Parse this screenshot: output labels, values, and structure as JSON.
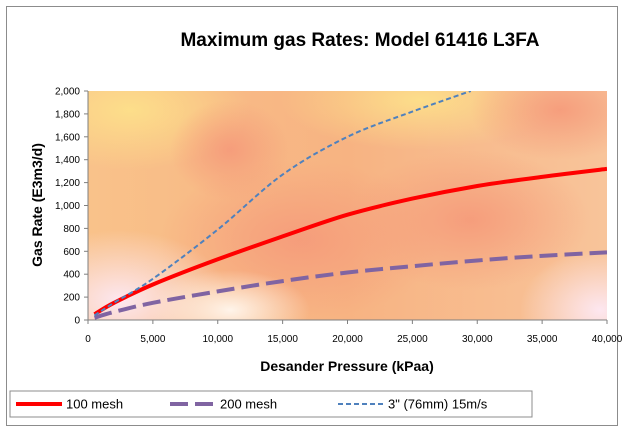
{
  "chart_data": {
    "type": "line",
    "title": "Maximum gas Rates: Model 61416 L3FA",
    "xlabel": "Desander Pressure (kPaa)",
    "ylabel": "Gas Rate (E3m3/d)",
    "xlim": [
      0,
      40000
    ],
    "ylim": [
      0,
      2000
    ],
    "x_ticks": [
      0,
      5000,
      10000,
      15000,
      20000,
      25000,
      30000,
      35000,
      40000
    ],
    "x_tick_labels": [
      "0",
      "5,000",
      "10,000",
      "15,000",
      "20,000",
      "25,000",
      "30,000",
      "35,000",
      "40,000"
    ],
    "y_ticks": [
      0,
      200,
      400,
      600,
      800,
      1000,
      1200,
      1400,
      1600,
      1800,
      2000
    ],
    "y_tick_labels": [
      "0",
      "200",
      "400",
      "600",
      "800",
      "1,000",
      "1,200",
      "1,400",
      "1,600",
      "1,800",
      "2,000"
    ],
    "grid": false,
    "legend_position": "bottom",
    "series": [
      {
        "name": "100 mesh",
        "color": "#ff0000",
        "style": "solid",
        "x": [
          500,
          2000,
          5000,
          10000,
          15000,
          20000,
          25000,
          30000,
          35000,
          40000
        ],
        "y": [
          50,
          150,
          310,
          530,
          730,
          920,
          1060,
          1170,
          1250,
          1320
        ]
      },
      {
        "name": "200 mesh",
        "color": "#8064a2",
        "style": "long-dash",
        "x": [
          500,
          2000,
          5000,
          10000,
          15000,
          20000,
          25000,
          30000,
          35000,
          40000
        ],
        "y": [
          20,
          70,
          150,
          250,
          340,
          415,
          470,
          520,
          560,
          590
        ]
      },
      {
        "name": "3\" (76mm) 15m/s",
        "color": "#4f81bd",
        "style": "dash",
        "x": [
          500,
          2000,
          5000,
          10000,
          15000,
          20000,
          25000,
          29500
        ],
        "y": [
          40,
          150,
          360,
          790,
          1270,
          1600,
          1820,
          2000
        ]
      }
    ]
  }
}
